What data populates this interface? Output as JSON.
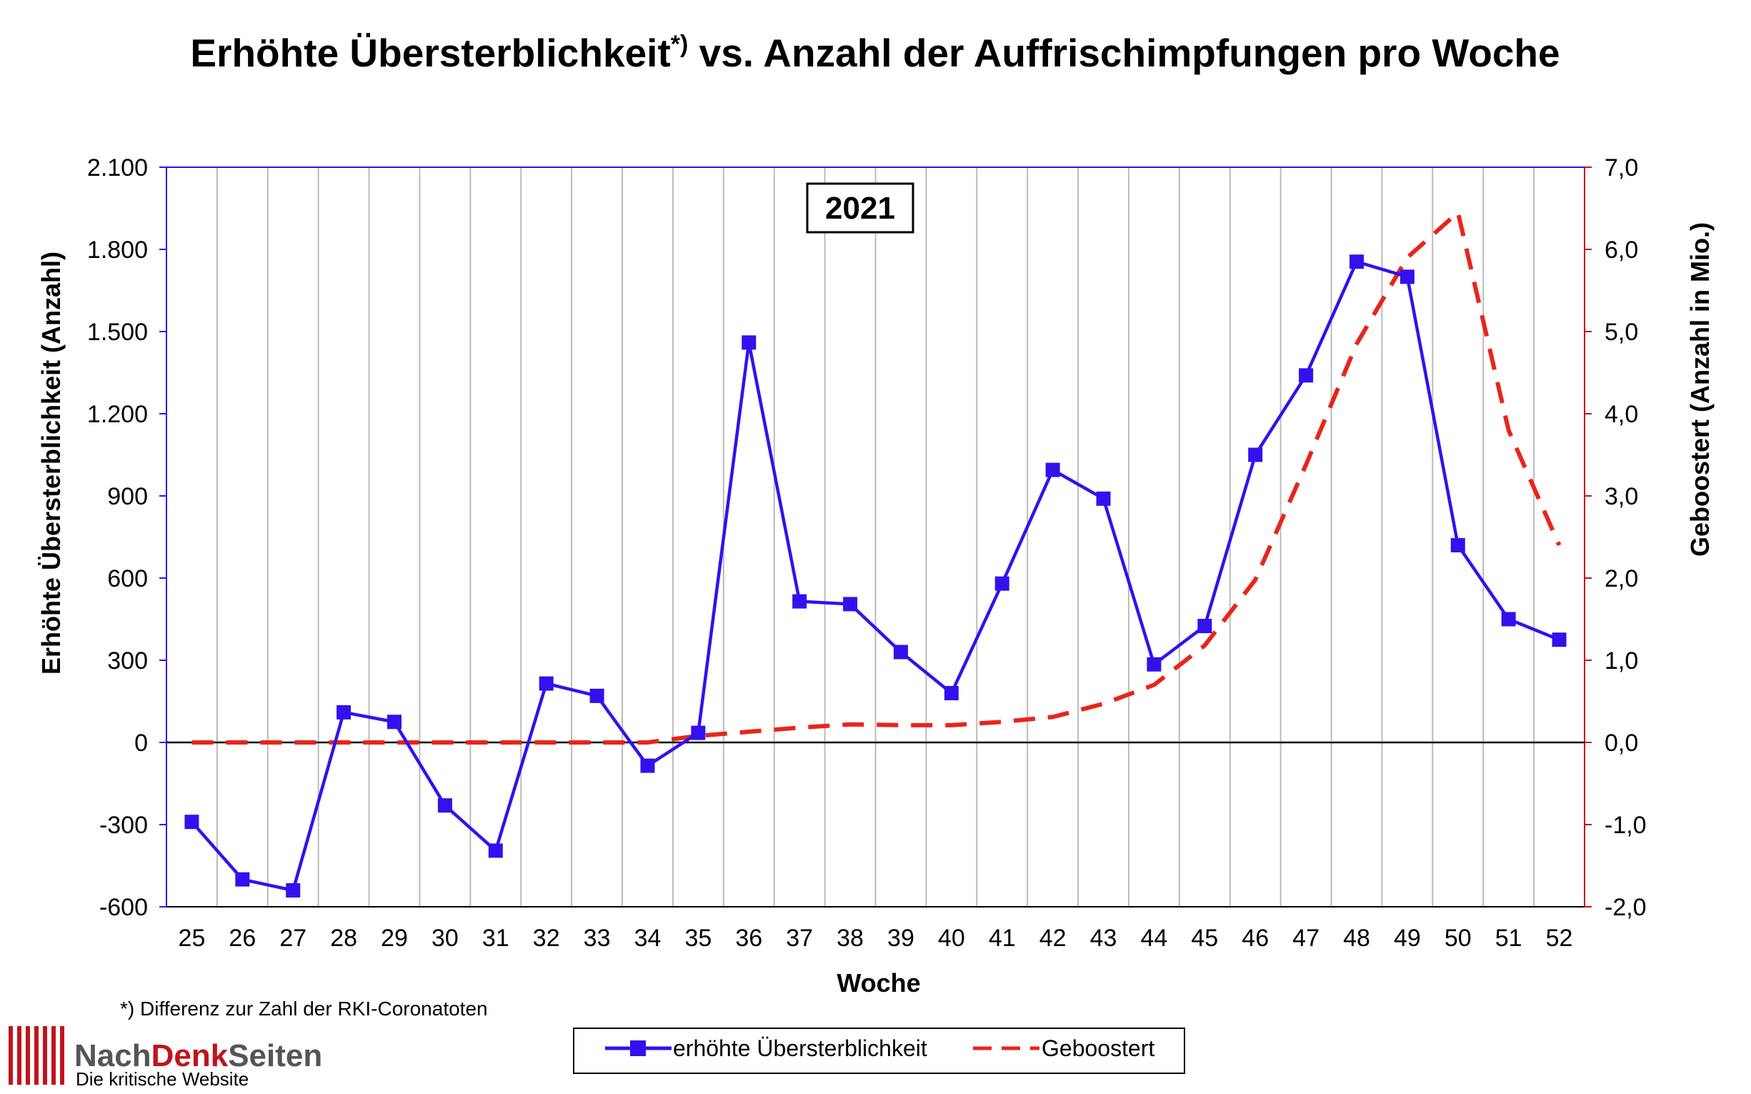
{
  "chart_data": {
    "type": "line",
    "title": "Erhöhte Übersterblichkeit",
    "title_marker": "*)",
    "title_rest": " vs. Anzahl der Auffrischimpfungen pro Woche",
    "annotation": "2021",
    "xlabel": "Woche",
    "ylabel_left": "Erhöhte Übersterblichkeit (Anzahl)",
    "ylabel_right": "Geboostert (Anzahl in Mio.)",
    "categories": [
      "25",
      "26",
      "27",
      "28",
      "29",
      "30",
      "31",
      "32",
      "33",
      "34",
      "35",
      "36",
      "37",
      "38",
      "39",
      "40",
      "41",
      "42",
      "43",
      "44",
      "45",
      "46",
      "47",
      "48",
      "49",
      "50",
      "51",
      "52"
    ],
    "ylim_left": [
      -600,
      2100
    ],
    "yticks_left": [
      -600,
      -300,
      0,
      300,
      600,
      900,
      1200,
      1500,
      1800,
      2100
    ],
    "ytick_labels_left": [
      "-600",
      "-300",
      "0",
      "300",
      "600",
      "900",
      "1.200",
      "1.500",
      "1.800",
      "2.100"
    ],
    "ylim_right": [
      -2.0,
      7.0
    ],
    "yticks_right": [
      -2.0,
      -1.0,
      0.0,
      1.0,
      2.0,
      3.0,
      4.0,
      5.0,
      6.0,
      7.0
    ],
    "ytick_labels_right": [
      "-2,0",
      "-1,0",
      "0,0",
      "1,0",
      "2,0",
      "3,0",
      "4,0",
      "5,0",
      "6,0",
      "7,0"
    ],
    "grid": "vertical",
    "legend_position": "bottom",
    "series": [
      {
        "name": "erhöhte Übersterblichkeit",
        "axis": "left",
        "color": "#3311EE",
        "style": "solid-square-markers",
        "values": [
          -290,
          -500,
          -540,
          110,
          75,
          -230,
          -395,
          215,
          170,
          -85,
          35,
          1460,
          515,
          505,
          330,
          180,
          580,
          995,
          890,
          285,
          425,
          1050,
          1340,
          1755,
          1700,
          720,
          450,
          375
        ]
      },
      {
        "name": "Geboostert",
        "axis": "right",
        "color": "#E8251B",
        "style": "dashed",
        "values": [
          0.0,
          0.0,
          0.0,
          0.0,
          0.0,
          0.0,
          0.0,
          0.0,
          0.0,
          0.0,
          0.08,
          0.13,
          0.18,
          0.22,
          0.21,
          0.21,
          0.25,
          0.31,
          0.47,
          0.7,
          1.18,
          1.98,
          3.38,
          4.85,
          5.9,
          6.45,
          3.8,
          2.4
        ]
      }
    ]
  },
  "footnote": "*) Differenz zur Zahl der RKI-Coronatoten",
  "branding": {
    "part1": "Nach",
    "part2": "Denk",
    "part3": "Seiten",
    "tagline": "Die kritische Website"
  },
  "colors": {
    "left_axis": "#3311EE",
    "right_axis": "#C0141B",
    "brand_red": "#C0141B",
    "brand_gray": "#555555",
    "grid": "#BBBBBB"
  }
}
